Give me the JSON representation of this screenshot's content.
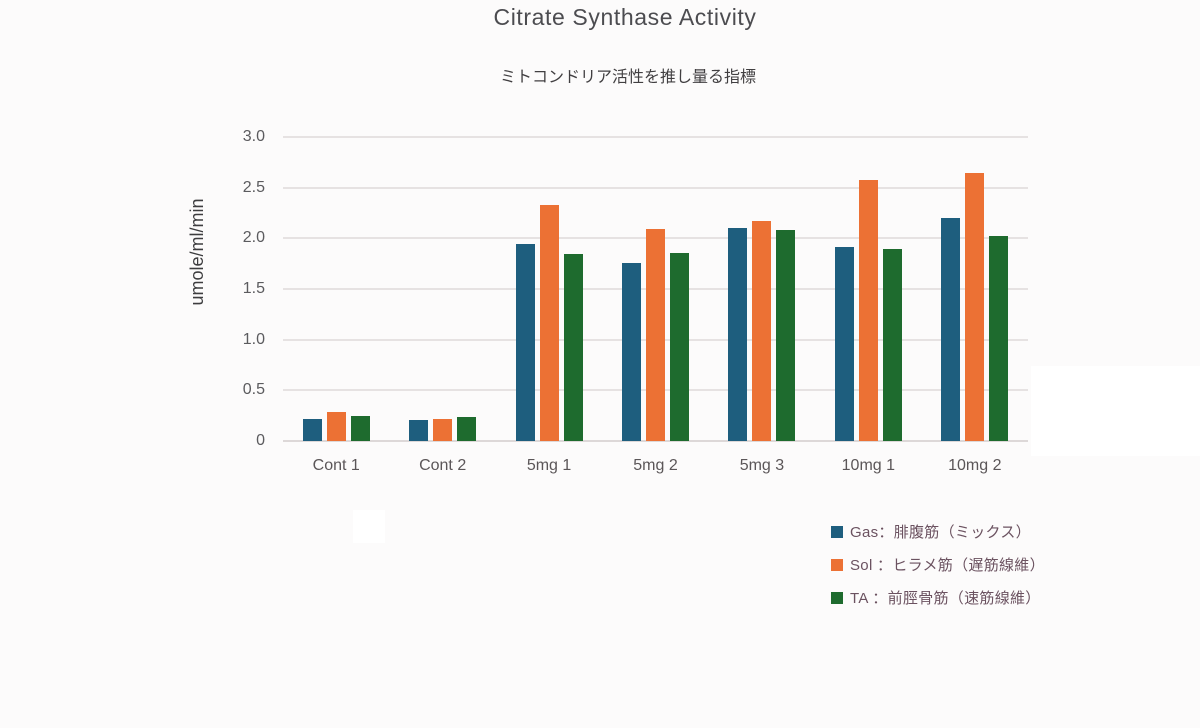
{
  "page": {
    "title": "Citrate Synthase Activity",
    "subtitle": "ミトコンドリア活性を推し量る指標"
  },
  "chart_data": {
    "type": "bar",
    "title": "Citrate Synthase Activity",
    "subtitle": "ミトコンドリア活性を推し量る指標",
    "xlabel": "",
    "ylabel": "umole/ml/min",
    "ylim": [
      0,
      3.0
    ],
    "ytick_labels": [
      "0",
      "0.5",
      "1.0",
      "1.5",
      "2.0",
      "2.5",
      "3.0"
    ],
    "grid": true,
    "legend_position": "bottom-right",
    "categories": [
      "Cont 1",
      "Cont 2",
      "5mg 1",
      "5mg 2",
      "5mg 3",
      "10mg 1",
      "10mg 2"
    ],
    "series": [
      {
        "key": "gas",
        "name": "Gas：腓腹筋（ミックス）",
        "color": "#1e5e7e",
        "values": [
          0.22,
          0.21,
          1.94,
          1.76,
          2.1,
          1.91,
          2.2
        ]
      },
      {
        "key": "sol",
        "name": "Sol ：ヒラメ筋（遅筋線維）",
        "color": "#ec7134",
        "values": [
          0.29,
          0.22,
          2.33,
          2.09,
          2.17,
          2.58,
          2.64
        ]
      },
      {
        "key": "ta",
        "name": "TA ：前脛骨筋（速筋線維）",
        "color": "#1e6b2e",
        "values": [
          0.25,
          0.24,
          1.85,
          1.86,
          2.08,
          1.89,
          2.02
        ]
      }
    ]
  }
}
